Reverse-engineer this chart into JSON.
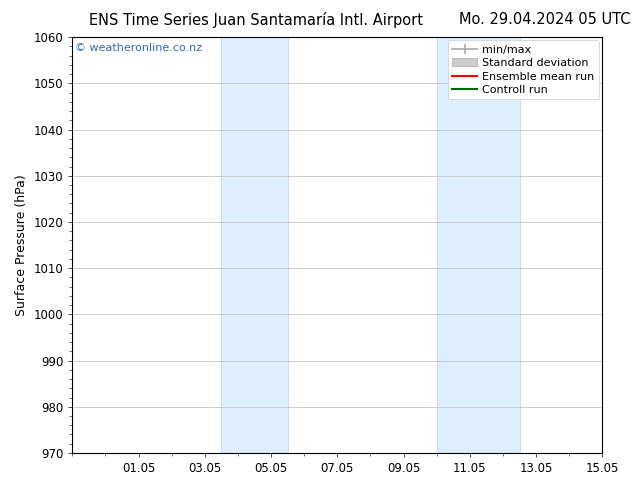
{
  "title_left": "ENS Time Series Juan Santamaría Intl. Airport",
  "title_right": "Mo. 29.04.2024 05 UTC",
  "ylabel": "Surface Pressure (hPa)",
  "ylim": [
    970,
    1060
  ],
  "yticks": [
    970,
    980,
    990,
    1000,
    1010,
    1020,
    1030,
    1040,
    1050,
    1060
  ],
  "xlim": [
    0,
    16
  ],
  "xtick_labels": [
    "01.05",
    "03.05",
    "05.05",
    "07.05",
    "09.05",
    "11.05",
    "13.05",
    "15.05"
  ],
  "xtick_positions": [
    2,
    4,
    6,
    8,
    10,
    12,
    14,
    16
  ],
  "shaded_bands": [
    {
      "x_start": 4.5,
      "x_end": 6.5
    },
    {
      "x_start": 11.0,
      "x_end": 13.5
    }
  ],
  "shaded_color": "#ddeeff",
  "shaded_edge_color": "#b8d0ea",
  "watermark_text": "© weatheronline.co.nz",
  "watermark_color": "#3366bb",
  "legend_items": [
    {
      "label": "min/max",
      "color": "#aaaaaa"
    },
    {
      "label": "Standard deviation",
      "color": "#cccccc"
    },
    {
      "label": "Ensemble mean run",
      "color": "#ff0000"
    },
    {
      "label": "Controll run",
      "color": "#006600"
    }
  ],
  "background_color": "#ffffff",
  "grid_color": "#bbbbbb",
  "title_fontsize": 10.5,
  "tick_fontsize": 8.5,
  "legend_fontsize": 8,
  "ylabel_fontsize": 9
}
